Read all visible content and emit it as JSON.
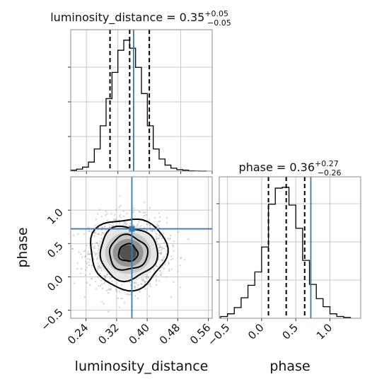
{
  "chart_data": [
    {
      "type": "histogram",
      "panel": "luminosity_distance-marginal",
      "title": {
        "text": "luminosity_distance = 0.35",
        "sup": "+0.05",
        "sub": "−0.05"
      },
      "xlim": [
        0.2,
        0.56
      ],
      "bin_edges": [
        0.2,
        0.215,
        0.23,
        0.245,
        0.26,
        0.275,
        0.29,
        0.305,
        0.32,
        0.335,
        0.35,
        0.365,
        0.38,
        0.395,
        0.41,
        0.425,
        0.44,
        0.455,
        0.47,
        0.485,
        0.5,
        0.515,
        0.53,
        0.545
      ],
      "counts": [
        1,
        2,
        4,
        9,
        22,
        45,
        72,
        98,
        120,
        130,
        122,
        103,
        77,
        45,
        22,
        12,
        6,
        3,
        1.5,
        1,
        0.3,
        0.15,
        0.05
      ],
      "quantiles": [
        0.3,
        0.35,
        0.4
      ],
      "truth": 0.36
    },
    {
      "type": "histogram",
      "panel": "phase-marginal",
      "title": {
        "text": "phase = 0.36",
        "sup": "+0.27",
        "sub": "−0.26"
      },
      "xlim": [
        -0.62,
        1.45
      ],
      "xticks": [
        "−0.5",
        "0.0",
        "0.5",
        "1.0"
      ],
      "xticks_values": [
        -0.5,
        0.0,
        0.5,
        1.0
      ],
      "xlabel": "phase",
      "bin_edges": [
        -0.6,
        -0.5,
        -0.4,
        -0.3,
        -0.2,
        -0.1,
        0.0,
        0.1,
        0.2,
        0.3,
        0.4,
        0.5,
        0.6,
        0.7,
        0.8,
        0.9,
        1.0,
        1.1,
        1.2,
        1.3
      ],
      "counts": [
        2,
        5,
        12,
        23,
        37,
        52,
        80,
        128,
        146,
        147,
        127,
        101,
        65,
        38,
        22,
        13,
        5,
        2,
        1
      ],
      "quantiles": [
        0.1,
        0.36,
        0.63
      ],
      "truth": 0.72
    },
    {
      "type": "scatter",
      "panel": "phase-vs-luminosity_distance",
      "xlim": [
        0.2,
        0.57
      ],
      "ylim": [
        -0.62,
        1.5
      ],
      "xticks": [
        "0.24",
        "0.32",
        "0.40",
        "0.48",
        "0.56"
      ],
      "xticks_values": [
        0.24,
        0.32,
        0.4,
        0.48,
        0.56
      ],
      "yticks": [
        "−0.5",
        "0.0",
        "0.5",
        "1.0"
      ],
      "yticks_values": [
        -0.5,
        0.0,
        0.5,
        1.0
      ],
      "xlabel": "luminosity_distance",
      "ylabel": "phase",
      "center": [
        0.35,
        0.36
      ],
      "spread": [
        0.05,
        0.26
      ],
      "contours": [
        {
          "rx": 0.025,
          "ry": 0.13
        },
        {
          "rx": 0.05,
          "ry": 0.26
        },
        {
          "rx": 0.075,
          "ry": 0.4
        },
        {
          "rx": 0.1,
          "ry": 0.53
        }
      ],
      "truth": {
        "x": 0.36,
        "y": 0.72
      }
    }
  ],
  "colors": {
    "truth": "#3a78b0",
    "hist": "#000000",
    "scatter": "#a8a8a8",
    "grid": "#c8c8c8"
  }
}
